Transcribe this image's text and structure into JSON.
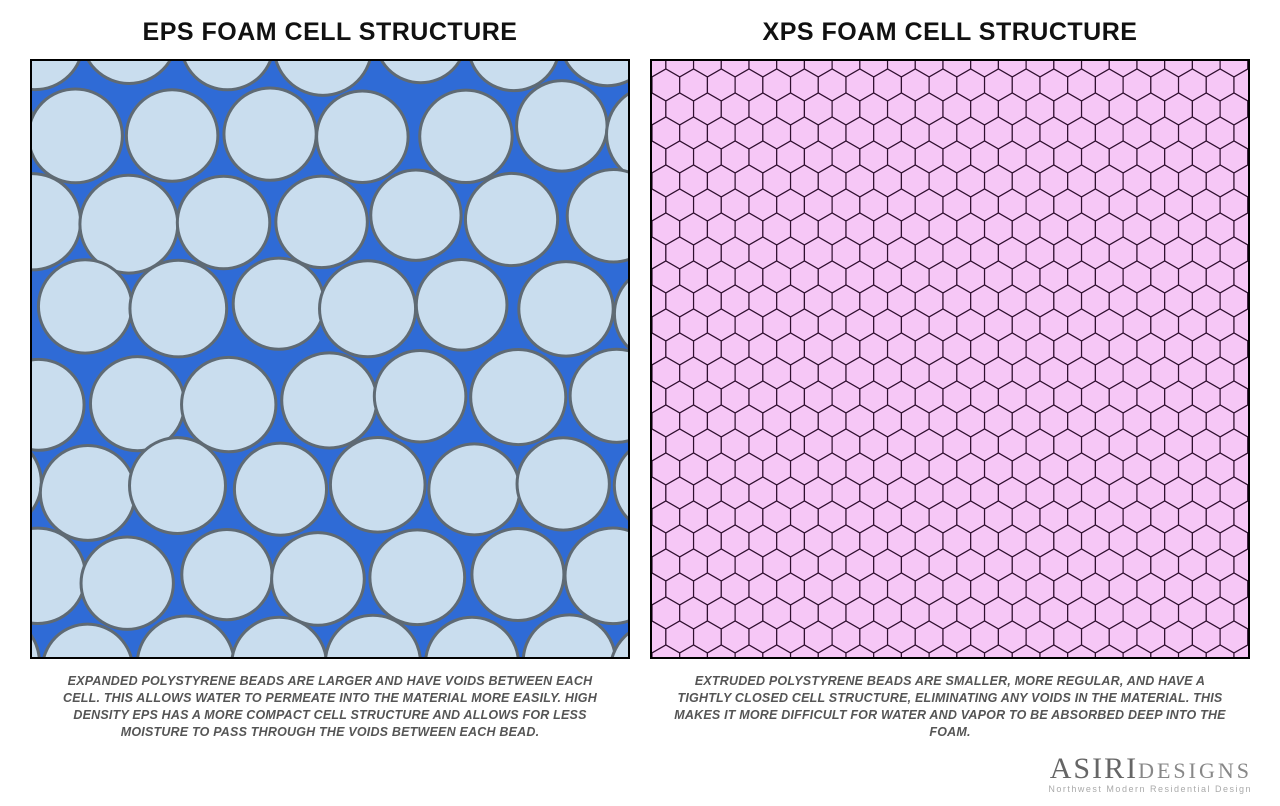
{
  "left": {
    "title": "EPS FOAM CELL STRUCTURE",
    "caption": "EXPANDED POLYSTYRENE BEADS ARE LARGER AND HAVE VOIDS BETWEEN EACH CELL. THIS ALLOWS WATER TO PERMEATE INTO THE MATERIAL MORE EASILY. HIGH DENSITY EPS HAS A MORE COMPACT CELL STRUCTURE AND ALLOWS FOR LESS MOISTURE TO PASS THROUGH THE VOIDS BETWEEN EACH BEAD.",
    "diagram": {
      "type": "circle-pack",
      "bg_color": "#2f6bd6",
      "circle_fill": "#c9ddee",
      "circle_stroke": "#5f6a73",
      "circle_stroke_width": 3,
      "radius": 47,
      "row_spacings": [
        0,
        90,
        88,
        92,
        87,
        90,
        88,
        92
      ],
      "row_offsets": [
        0,
        48,
        0,
        50,
        6,
        54,
        2,
        52
      ],
      "col_spacing": 96,
      "jitter": 6,
      "cols": 8
    }
  },
  "right": {
    "title": "XPS FOAM CELL STRUCTURE",
    "caption": "EXTRUDED POLYSTYRENE BEADS ARE SMALLER, MORE REGULAR, AND HAVE A TIGHTLY CLOSED CELL STRUCTURE, ELIMINATING ANY VOIDS IN THE MATERIAL. THIS MAKES IT MORE DIFFICULT FOR WATER AND VAPOR TO BE ABSORBED DEEP INTO THE FOAM.",
    "diagram": {
      "type": "hex-grid",
      "bg_color": "#f6c7f6",
      "hex_fill": "#f6c7f6",
      "hex_stroke": "#301030",
      "hex_stroke_width": 1.2,
      "hex_radius": 16,
      "cols": 24,
      "rows": 26
    }
  },
  "brand": {
    "line1a": "ASIRI",
    "line1b": "DESIGNS",
    "line2": "Northwest Modern Residential Design"
  },
  "title_fontsize": 25,
  "caption_fontsize": 12.5,
  "panel_size": 600
}
